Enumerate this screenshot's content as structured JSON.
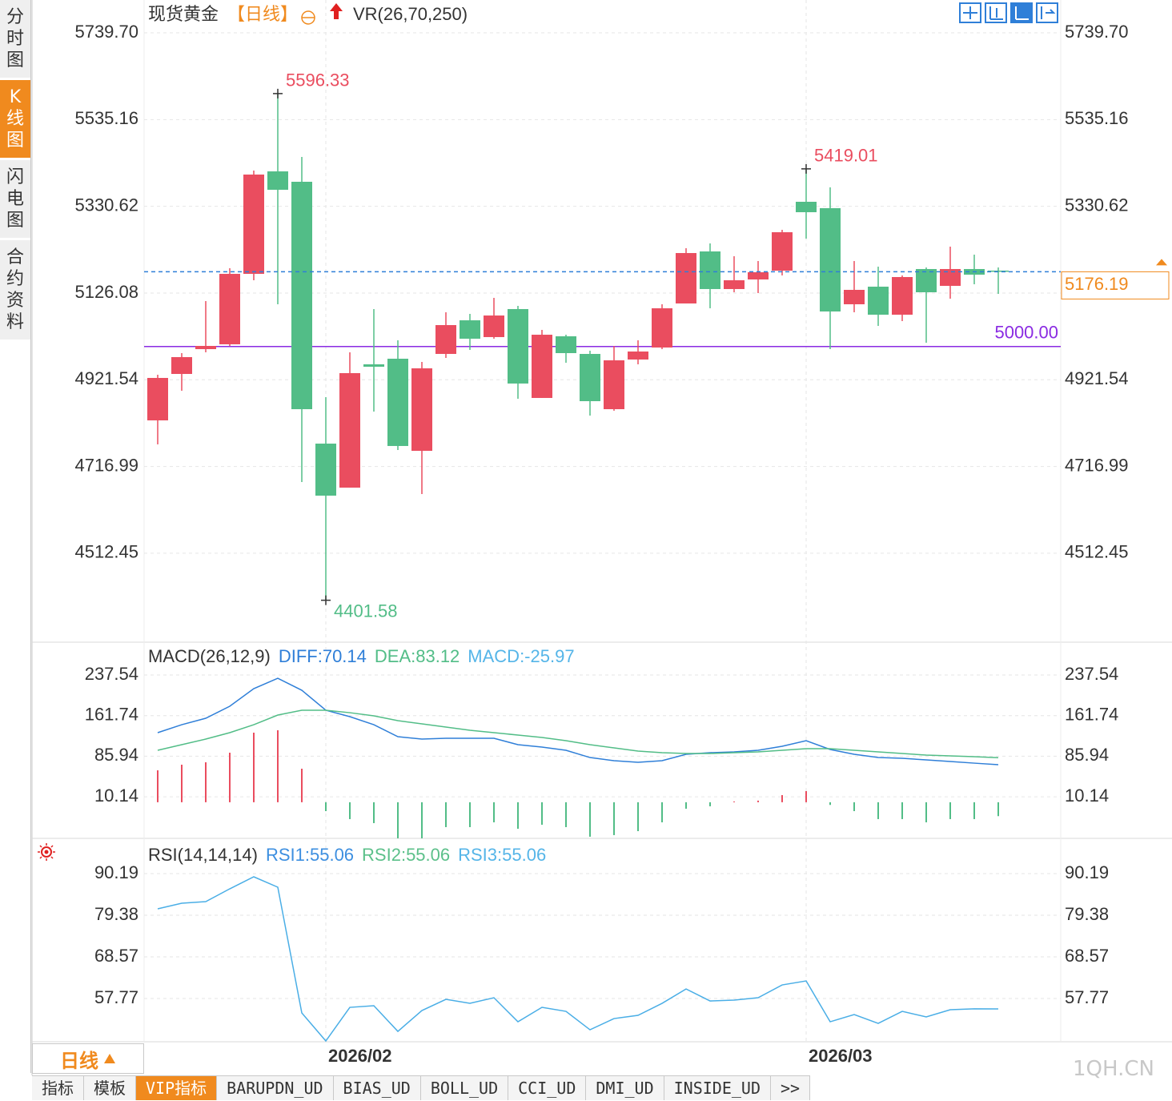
{
  "sidebar": {
    "tabs": [
      "分时图",
      "K线图",
      "闪电图",
      "合约资料"
    ],
    "active": 1
  },
  "chart_data": [
    {
      "type": "candlestick",
      "title": "现货黄金",
      "period": "【日线】",
      "indicator": "VR(26,70,250)",
      "categories": [
        null,
        null,
        null,
        null,
        null,
        null,
        null,
        "2026/02",
        null,
        null,
        null,
        null,
        null,
        null,
        null,
        null,
        null,
        null,
        null,
        null,
        null,
        null,
        null,
        null,
        null,
        null,
        null,
        "2026/03",
        null,
        null,
        null,
        null,
        null,
        null,
        null,
        null
      ],
      "open": [
        4825.8,
        4935.3,
        4993.8,
        5005.2,
        5171.3,
        5413.0,
        5388.5,
        4771.0,
        4667.2,
        4958.0,
        4971.2,
        4754.0,
        4982.5,
        5061.8,
        5022.2,
        5088.3,
        4878.7,
        5024.1,
        4982.5,
        4852.2,
        4969.3,
        4997.6,
        5101.5,
        5224.2,
        5135.5,
        5158.1,
        5178.9,
        5341.3,
        5326.2,
        5099.6,
        5141.1,
        5075.0,
        5182.7,
        5143.0,
        5182.7,
        5179.0
      ],
      "high": [
        4933.4,
        4984.4,
        5107.1,
        5184.6,
        5414.9,
        5596.33,
        5447.0,
        4880.6,
        4986.3,
        5088.3,
        5014.6,
        4963.6,
        5080.7,
        5076.9,
        5114.7,
        5095.8,
        5039.2,
        5027.8,
        4990.1,
        5001.4,
        5014.6,
        5099.6,
        5231.8,
        5243.1,
        5212.9,
        5201.6,
        5275.2,
        5419.01,
        5375.3,
        5201.6,
        5188.3,
        5167.6,
        5186.4,
        5235.5,
        5216.6,
        5186.4
      ],
      "low": [
        4769.2,
        4895.7,
        4986.3,
        5001.4,
        5156.2,
        5099.6,
        4680.4,
        4401.58,
        4667.2,
        4846.6,
        4755.9,
        4652.1,
        4973.1,
        4992.0,
        5018.4,
        4876.8,
        4878.7,
        4961.7,
        4837.1,
        4848.5,
        4958.0,
        4993.8,
        5101.5,
        5090.1,
        5127.9,
        5126.0,
        5167.6,
        5254.4,
        4993.8,
        5080.7,
        5048.6,
        5059.9,
        5008.9,
        5112.8,
        5146.8,
        5124.1
      ],
      "close": [
        4925.9,
        4975.0,
        5001.4,
        5171.3,
        5405.5,
        5369.6,
        4852.2,
        4648.3,
        4937.2,
        4952.3,
        4765.4,
        4948.5,
        5050.5,
        5018.4,
        5073.1,
        4912.7,
        5027.8,
        4984.4,
        4871.1,
        4967.4,
        4988.2,
        5090.1,
        5220.4,
        5135.5,
        5156.2,
        5175.1,
        5269.5,
        5316.7,
        5082.6,
        5133.6,
        5075.0,
        5163.8,
        5127.9,
        5182.7,
        5169.4,
        5176.19
      ],
      "up_color": "#ea4d5f",
      "down_color": "#52bd87",
      "last_price_color": "#f08a1e",
      "last_line_color": "#2f7fd8",
      "reference_line": {
        "value": 5000,
        "label": "5000.00",
        "color": "#8a2be2"
      },
      "ylim": [
        4306.5,
        5807.7
      ],
      "yticks": [
        {
          "value": 5739.7,
          "label": "5739.70"
        },
        5535.16,
        5330.62,
        5126.08,
        4921.54,
        4716.99,
        4512.45
      ],
      "grid": true
    },
    {
      "type": "macd",
      "title": "MACD(26,12,9)",
      "series": [
        {
          "label": "DIFF:70.14",
          "color": "#2f7fd8",
          "values": [
            129.9,
            144.8,
            156.8,
            179.2,
            212.1,
            231.5,
            209.1,
            171.8,
            159.8,
            144.8,
            122.4,
            117.9,
            119.4,
            119.4,
            119.4,
            107.5,
            103.0,
            97.0,
            83.5,
            77.6,
            74.6,
            77.6,
            89.5,
            92.5,
            94.0,
            97.0,
            104.5,
            114.9,
            98.5,
            89.5,
            83.5,
            82.0,
            79.0,
            76.0,
            73.0,
            70.14
          ]
        },
        {
          "label": "DEA:83.12",
          "color": "#52bd87",
          "values": [
            97.0,
            107.5,
            117.9,
            129.9,
            144.8,
            162.8,
            171.8,
            171.8,
            167.2,
            161.3,
            152.3,
            146.3,
            140.3,
            134.4,
            129.9,
            125.4,
            120.9,
            114.9,
            107.5,
            101.5,
            95.5,
            92.5,
            91.0,
            91.0,
            92.5,
            94.0,
            97.0,
            100.0,
            100.0,
            97.0,
            94.0,
            91.0,
            88.0,
            86.5,
            85.0,
            83.12
          ]
        },
        {
          "label": "MACD:-25.97",
          "color": "#55b5e8",
          "type": "bar",
          "up_color": "#ea4d5f",
          "down_color": "#52bd87",
          "values": [
            59.6,
            70.1,
            74.6,
            92.5,
            129.9,
            134.4,
            62.6,
            -16.6,
            -31.5,
            -39.0,
            -67.4,
            -67.4,
            -46.5,
            -46.5,
            -37.5,
            -49.5,
            -42.0,
            -46.5,
            -64.4,
            -61.4,
            -54.0,
            -37.5,
            -12.1,
            -7.6,
            1.5,
            3.0,
            13.3,
            20.8,
            -5.0,
            -16.6,
            -31.5,
            -31.5,
            -37.5,
            -31.5,
            -31.5,
            -25.97
          ]
        }
      ],
      "ylim": [
        -70,
        289.9
      ],
      "yticks": [
        237.54,
        161.74,
        85.94,
        10.14
      ],
      "grid": true
    },
    {
      "type": "rsi",
      "title": "RSI(14,14,14)",
      "legend": [
        {
          "label": "RSI1:55.06",
          "color": "#3d8fe0"
        },
        {
          "label": "RSI2:55.06",
          "color": "#5cc08a"
        },
        {
          "label": "RSI3:55.06",
          "color": "#55b5e8"
        }
      ],
      "color": "#4aaee6",
      "values": [
        81.04,
        82.5,
        82.91,
        86.24,
        89.36,
        86.66,
        54.02,
        46.74,
        55.47,
        55.89,
        49.23,
        54.64,
        57.55,
        56.51,
        57.97,
        51.73,
        55.47,
        54.43,
        49.65,
        52.56,
        53.39,
        56.51,
        60.25,
        57.13,
        57.34,
        57.97,
        61.29,
        62.33,
        51.73,
        53.6,
        51.31,
        54.43,
        52.98,
        54.85,
        55.1,
        55.06
      ],
      "ylim": [
        46.0,
        98.3
      ],
      "yticks": [
        90.19,
        79.38,
        68.57,
        57.77
      ],
      "grid": true
    }
  ],
  "period_tab": "日线",
  "bottom_tabs": {
    "tabs": [
      "指标",
      "模板",
      "VIP指标",
      "BARUPDN_UD",
      "BIAS_UD",
      "BOLL_UD",
      "CCI_UD",
      "DMI_UD",
      "INSIDE_UD",
      ">>"
    ],
    "active": 2
  },
  "watermark": "1QH.CN"
}
